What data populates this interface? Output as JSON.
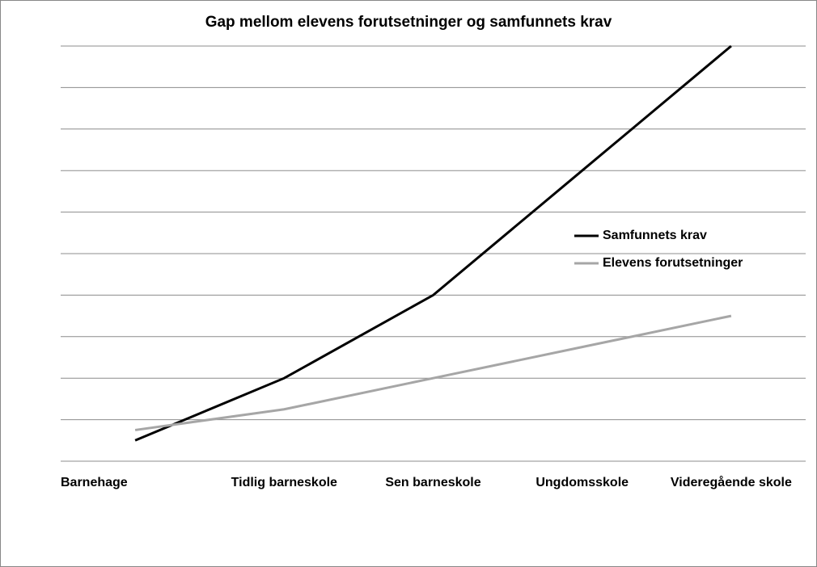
{
  "chart_data": {
    "type": "line",
    "title": "Gap mellom elevens forutsetninger og samfunnets krav",
    "categories": [
      "Barnehage",
      "Tidlig barneskole",
      "Sen barneskole",
      "Ungdomsskole",
      "Videregående skole"
    ],
    "series": [
      {
        "name": "Samfunnets krav",
        "color": "#000000",
        "values": [
          0.5,
          2,
          4,
          7,
          10
        ]
      },
      {
        "name": "Elevens forutsetninger",
        "color": "#a6a6a6",
        "values": [
          0.75,
          1.25,
          2,
          2.75,
          3.5
        ]
      }
    ],
    "ylim": [
      0,
      10
    ],
    "yticks": [
      0,
      1,
      2,
      3,
      4,
      5,
      6,
      7,
      8,
      9,
      10
    ],
    "grid": true,
    "legend": "right"
  }
}
